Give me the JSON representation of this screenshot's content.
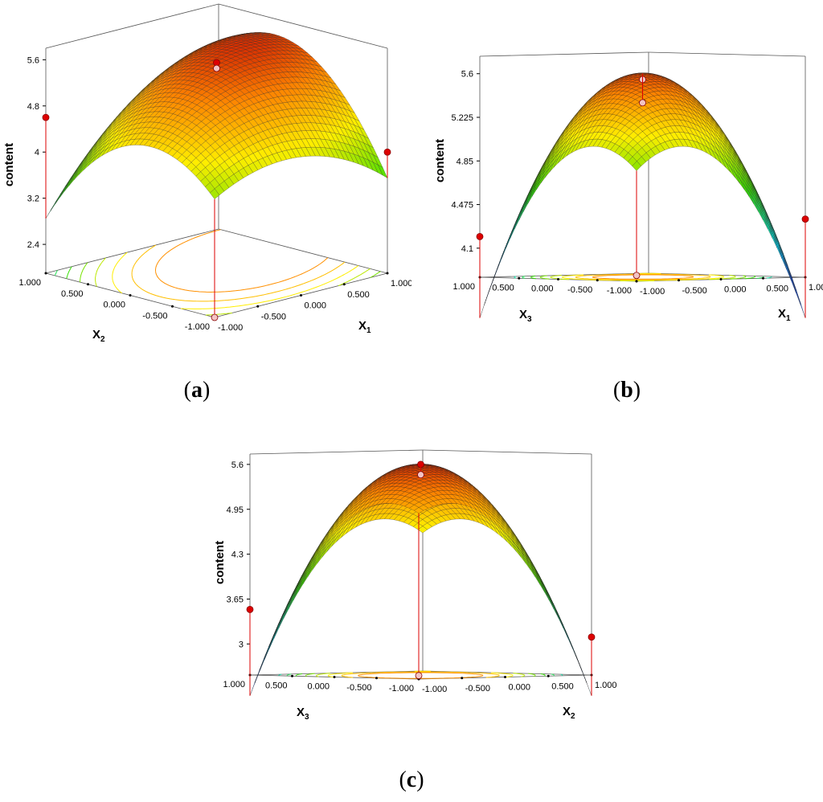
{
  "chart_data": [
    {
      "type": "surface",
      "panel_label": "a",
      "zlabel": "content",
      "x_axis": {
        "name": "X",
        "sub": "1",
        "ticks": [
          "-1.000",
          "-0.500",
          "0.000",
          "0.500",
          "1.000"
        ]
      },
      "y_axis": {
        "name": "X",
        "sub": "2",
        "ticks": [
          "-1.000",
          "-0.500",
          "0.000",
          "0.500",
          "1.000"
        ]
      },
      "z_ticks": [
        "2.4",
        "3.2",
        "4",
        "4.8",
        "5.6"
      ],
      "zlim": [
        1.9,
        5.8
      ],
      "model": {
        "b0": 5.5,
        "b1": 0.45,
        "b2": 0.1,
        "b11": -0.55,
        "b22": -1.1,
        "b12": 0.65
      },
      "design_points": [
        {
          "x": 0,
          "y": 0,
          "z": 5.55
        },
        {
          "x": 0,
          "y": 0,
          "z": 5.45
        },
        {
          "x": -1,
          "y": -1,
          "z": 1.9
        },
        {
          "x": -1,
          "y": 1,
          "z": 4.6
        },
        {
          "x": 1,
          "y": -1,
          "z": 4.0
        }
      ]
    },
    {
      "type": "surface",
      "panel_label": "b",
      "zlabel": "content",
      "x_axis": {
        "name": "X",
        "sub": "1",
        "ticks": [
          "-1.000",
          "-0.500",
          "0.000",
          "0.500",
          "1.000"
        ]
      },
      "y_axis": {
        "name": "X",
        "sub": "3",
        "ticks": [
          "-1.000",
          "-0.500",
          "0.000",
          "0.500",
          "1.000"
        ]
      },
      "z_ticks": [
        "4.1",
        "4.475",
        "4.85",
        "5.225",
        "5.6"
      ],
      "zlim": [
        3.85,
        5.75
      ],
      "model": {
        "b0": 5.6,
        "b1": 0.05,
        "b2": 0.05,
        "b11": -0.7,
        "b22": -0.7,
        "b12": 0.7
      },
      "design_points": [
        {
          "x": 0,
          "y": 0,
          "z": 5.55
        },
        {
          "x": 0,
          "y": 0,
          "z": 5.35
        },
        {
          "x": -1,
          "y": -1,
          "z": 3.9
        },
        {
          "x": -1,
          "y": 1,
          "z": 4.2
        },
        {
          "x": 1,
          "y": -1,
          "z": 4.35
        }
      ]
    },
    {
      "type": "surface",
      "panel_label": "c",
      "zlabel": "content",
      "x_axis": {
        "name": "X",
        "sub": "2",
        "ticks": [
          "-1.000",
          "-0.500",
          "0.000",
          "0.500",
          "1.000"
        ]
      },
      "y_axis": {
        "name": "X",
        "sub": "3",
        "ticks": [
          "-1.000",
          "-0.500",
          "0.000",
          "0.500",
          "1.000"
        ]
      },
      "z_ticks": [
        "3",
        "3.65",
        "4.3",
        "4.95",
        "5.6"
      ],
      "zlim": [
        2.55,
        5.75
      ],
      "model": {
        "b0": 5.6,
        "b1": -0.1,
        "b2": -0.1,
        "b11": -1.05,
        "b22": -1.05,
        "b12": 1.25
      },
      "design_points": [
        {
          "x": 0,
          "y": 0,
          "z": 5.6
        },
        {
          "x": 0,
          "y": 0,
          "z": 5.45
        },
        {
          "x": -1,
          "y": -1,
          "z": 2.6
        },
        {
          "x": -1,
          "y": 1,
          "z": 3.5
        },
        {
          "x": 1,
          "y": -1,
          "z": 3.1
        }
      ]
    }
  ],
  "colors": {
    "low": "#1a5cff",
    "cyan": "#00e5ff",
    "green": "#33dd00",
    "yellow": "#ffee00",
    "orange": "#ff8800",
    "high": "#cc1100",
    "design_point": "#dd0000"
  }
}
